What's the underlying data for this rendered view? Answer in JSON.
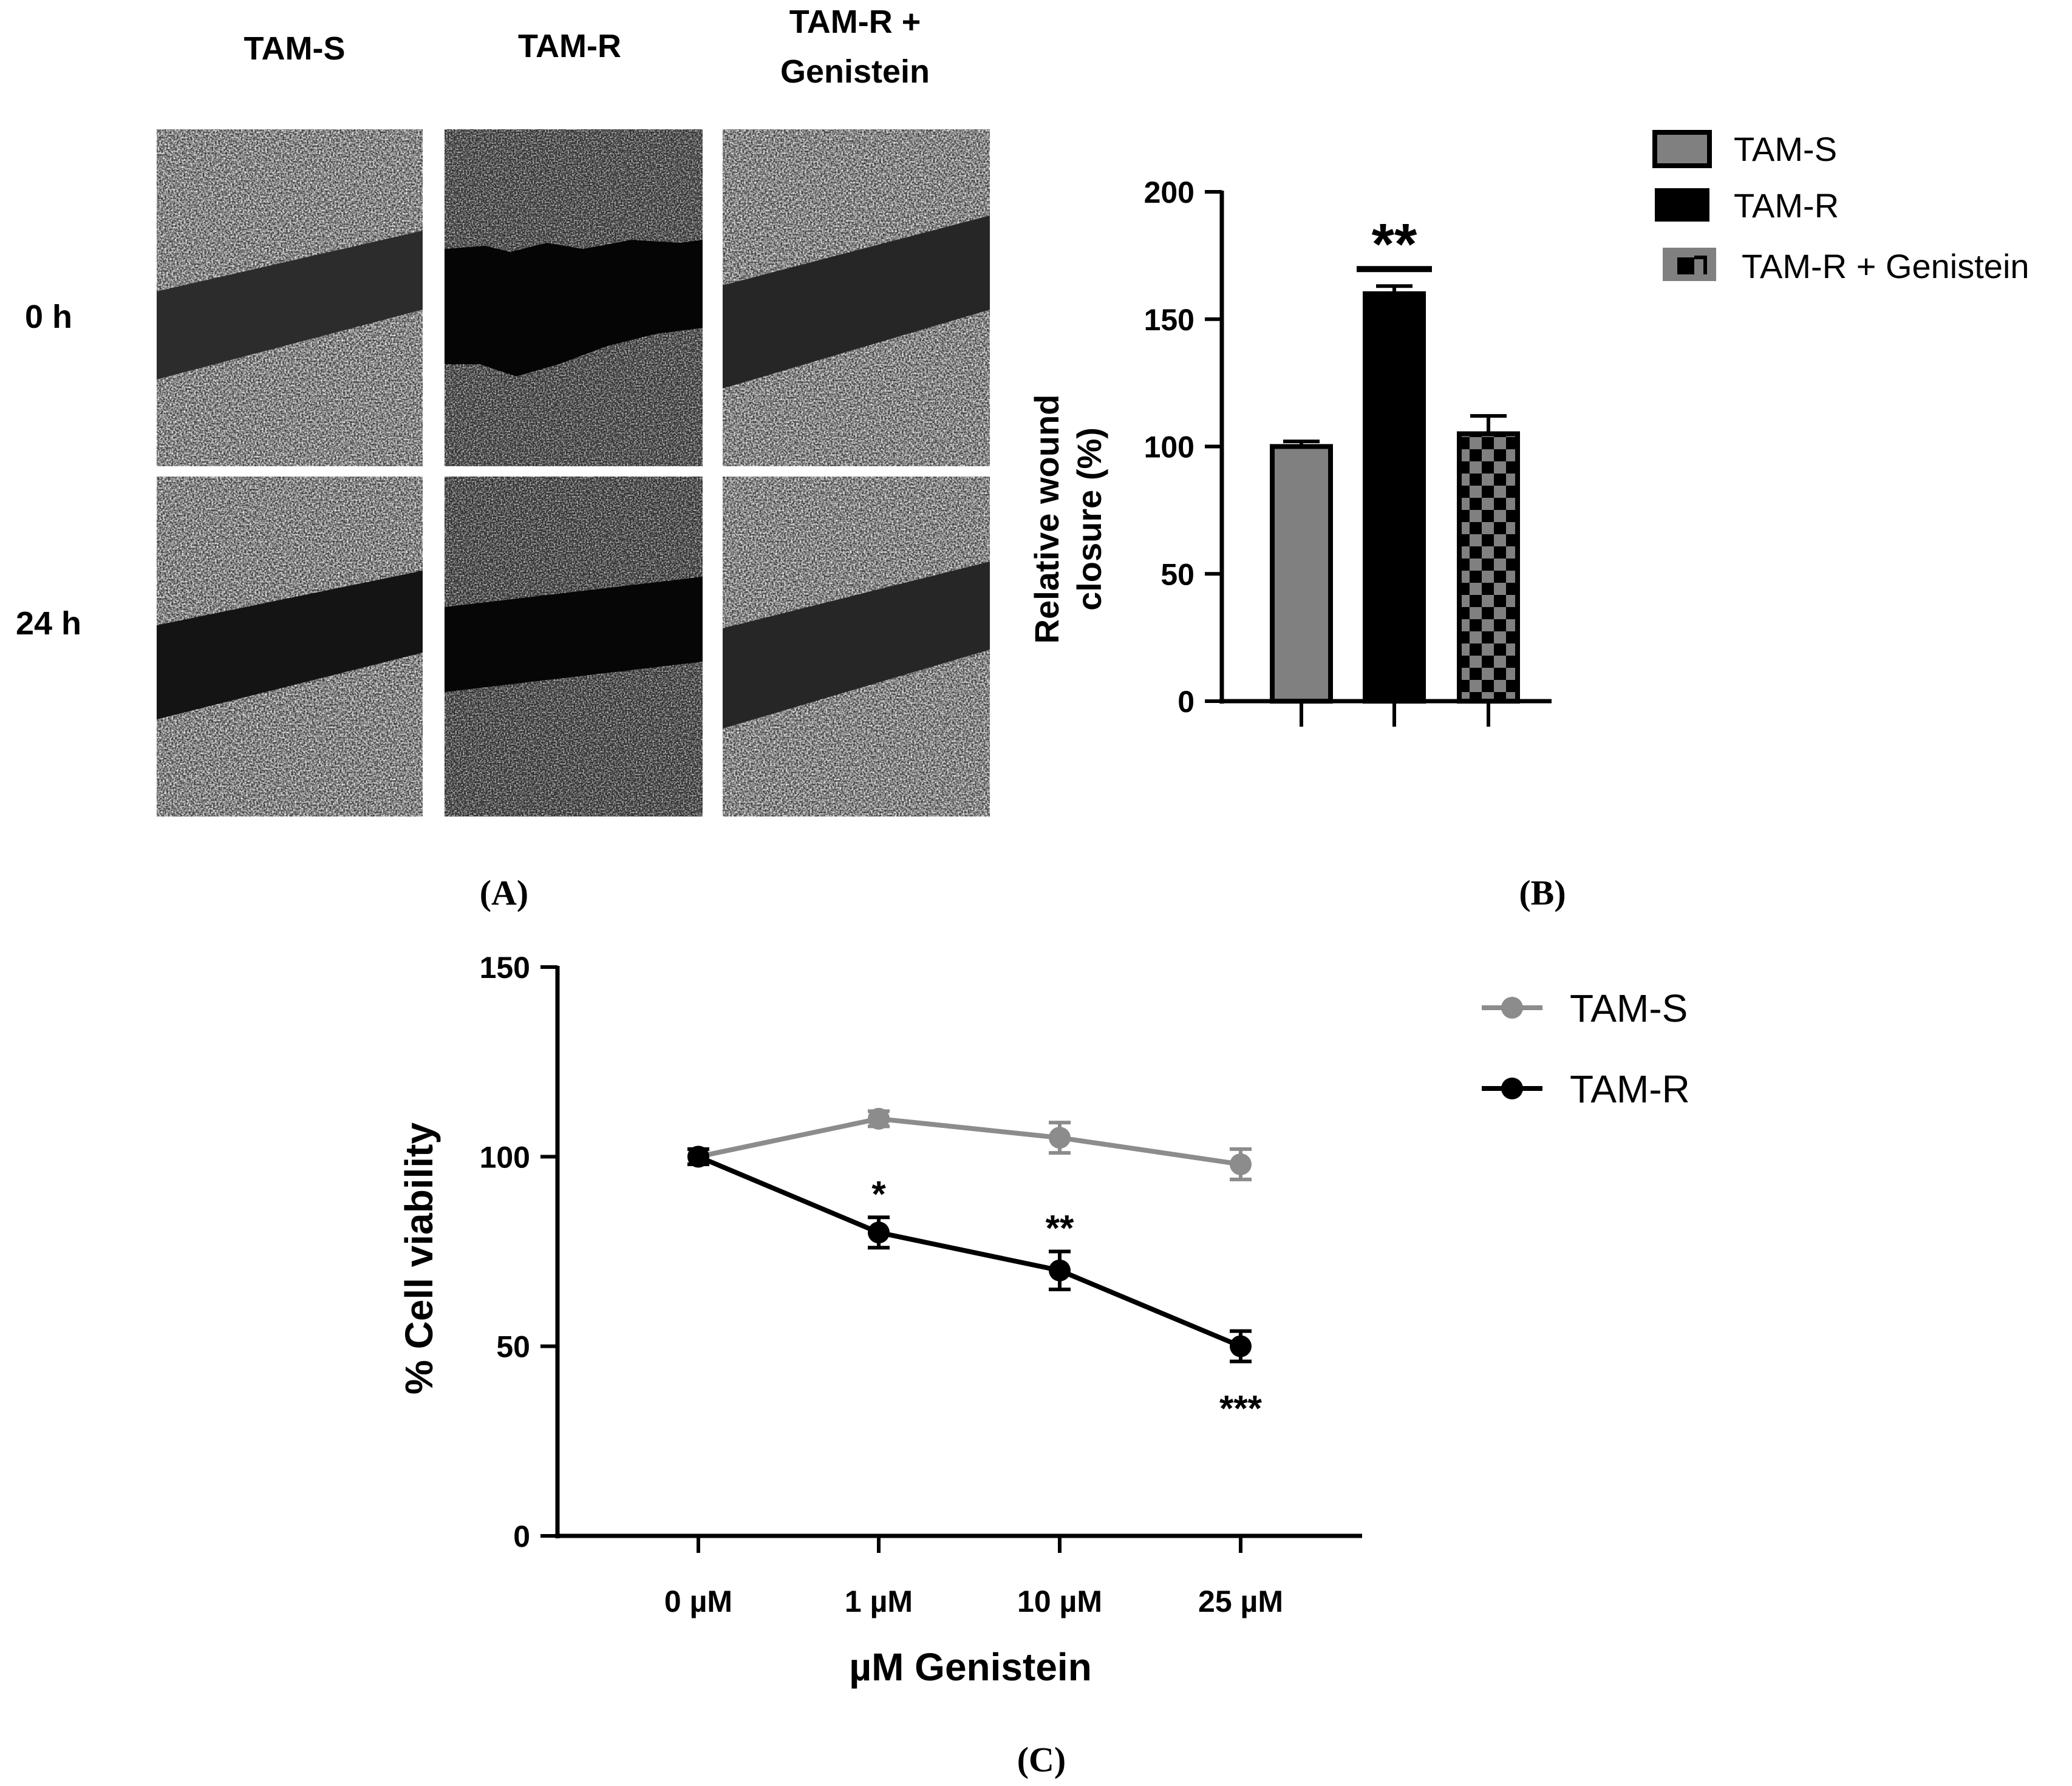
{
  "panelA": {
    "label": "(A)",
    "columns": [
      "TAM-S",
      "TAM-R",
      "TAM-R +",
      "Genistein"
    ],
    "rows": [
      "0 h",
      "24 h"
    ]
  },
  "panelB": {
    "label": "(B)",
    "legend": [
      "TAM-S",
      "TAM-R",
      "TAM-R + Genistein"
    ],
    "colors": {
      "tam_s": "#808080",
      "tam_r": "#000000"
    }
  },
  "panelC": {
    "label": "(C)",
    "legend": [
      "TAM-S",
      "TAM-R"
    ],
    "colors": {
      "tam_s": "#8c8c8c",
      "tam_r": "#000000"
    }
  },
  "chart_data": [
    {
      "type": "bar",
      "categories": [
        "TAM-S",
        "TAM-R",
        "TAM-R + Genistein"
      ],
      "values": [
        100,
        160,
        105
      ],
      "errors": [
        2,
        3,
        7
      ],
      "ylabel_lines": [
        "Relative wound",
        "closure (%)"
      ],
      "ylim": [
        0,
        200
      ],
      "yticks": [
        "0",
        "50",
        "100",
        "150",
        "200"
      ],
      "significance": [
        {
          "category": "TAM-R",
          "label": "**"
        }
      ]
    },
    {
      "type": "line",
      "x": [
        "0 µM",
        "1 µM",
        "10 µM",
        "25 µM"
      ],
      "series": [
        {
          "name": "TAM-S",
          "values": [
            100,
            110,
            105,
            98
          ],
          "errors": [
            2,
            2,
            4,
            4
          ]
        },
        {
          "name": "TAM-R",
          "values": [
            100,
            80,
            70,
            50
          ],
          "errors": [
            2,
            4,
            5,
            4
          ]
        }
      ],
      "xlabel": "µM Genistein",
      "ylabel": "% Cell viability",
      "ylim": [
        0,
        150
      ],
      "yticks": [
        "0",
        "50",
        "100",
        "150"
      ],
      "significance": [
        "",
        "*",
        "**",
        "***"
      ]
    }
  ]
}
